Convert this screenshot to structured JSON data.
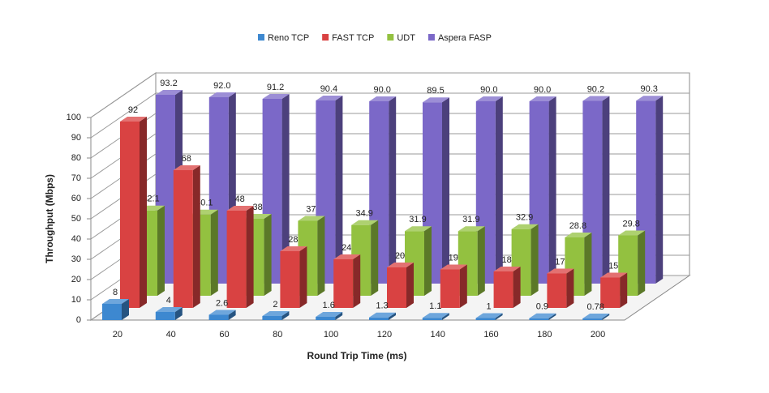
{
  "chart_data": {
    "type": "bar3d",
    "x_label": "Round Trip Time (ms)",
    "y_label": "Throughput (Mbps)",
    "categories": [
      "20",
      "40",
      "60",
      "80",
      "100",
      "120",
      "140",
      "160",
      "180",
      "200"
    ],
    "series": [
      {
        "name": "Reno TCP",
        "color": "#3d88d0",
        "values": [
          8,
          4,
          2.6,
          2,
          1.6,
          1.3,
          1.1,
          1,
          0.9,
          0.78
        ]
      },
      {
        "name": "FAST TCP",
        "color": "#d94242",
        "values": [
          92,
          68,
          48,
          28,
          24,
          20,
          19,
          18,
          17,
          15
        ]
      },
      {
        "name": "UDT",
        "color": "#93c140",
        "values": [
          42.1,
          40.1,
          38,
          37,
          34.9,
          31.9,
          31.9,
          32.9,
          28.8,
          29.8
        ]
      },
      {
        "name": "Aspera FASP",
        "color": "#7b68c8",
        "values": [
          93.2,
          92.0,
          91.2,
          90.4,
          90.0,
          89.5,
          90.0,
          90.0,
          90.2,
          90.3
        ],
        "value_labels": [
          "93.2",
          "92.0",
          "91.2",
          "90.4",
          "90.0",
          "89.5",
          "90.0",
          "90.0",
          "90.2",
          "90.3"
        ]
      }
    ],
    "ylim": [
      0,
      100
    ],
    "yticks": [
      0,
      10,
      20,
      30,
      40,
      50,
      60,
      70,
      80,
      90,
      100
    ],
    "grid": true,
    "legend": "top"
  }
}
